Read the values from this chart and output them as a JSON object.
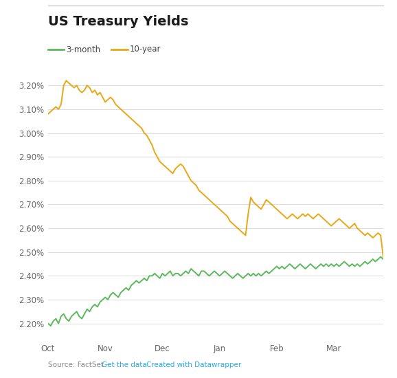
{
  "title": "US Treasury Yields",
  "legend": [
    "3-month",
    "10-year"
  ],
  "line_colors": [
    "#5cb85c",
    "#e6a817"
  ],
  "x_tick_labels": [
    "Oct",
    "Nov",
    "Dec",
    "Jan",
    "Feb",
    "Mar"
  ],
  "y_ticks": [
    2.2,
    2.3,
    2.4,
    2.5,
    2.6,
    2.7,
    2.8,
    2.9,
    3.0,
    3.1,
    3.2
  ],
  "ylim": [
    2.15,
    3.27
  ],
  "source_text": "Source: FactSet · ",
  "link_text1": "Get the data",
  "link_sep": " · ",
  "link_text2": "Created with Datawrapper",
  "background_color": "#ffffff",
  "grid_color": "#dddddd",
  "n_points": 130,
  "three_month": [
    2.2,
    2.19,
    2.21,
    2.22,
    2.2,
    2.23,
    2.24,
    2.22,
    2.21,
    2.23,
    2.24,
    2.25,
    2.23,
    2.22,
    2.24,
    2.26,
    2.25,
    2.27,
    2.28,
    2.27,
    2.29,
    2.3,
    2.31,
    2.3,
    2.32,
    2.33,
    2.32,
    2.31,
    2.33,
    2.34,
    2.35,
    2.34,
    2.36,
    2.37,
    2.38,
    2.37,
    2.38,
    2.39,
    2.38,
    2.4,
    2.4,
    2.41,
    2.4,
    2.39,
    2.41,
    2.4,
    2.41,
    2.42,
    2.4,
    2.41,
    2.41,
    2.4,
    2.41,
    2.42,
    2.41,
    2.43,
    2.42,
    2.41,
    2.4,
    2.42,
    2.42,
    2.41,
    2.4,
    2.41,
    2.42,
    2.41,
    2.4,
    2.41,
    2.42,
    2.41,
    2.4,
    2.39,
    2.4,
    2.41,
    2.4,
    2.39,
    2.4,
    2.41,
    2.4,
    2.41,
    2.4,
    2.41,
    2.4,
    2.41,
    2.42,
    2.41,
    2.42,
    2.43,
    2.44,
    2.43,
    2.44,
    2.43,
    2.44,
    2.45,
    2.44,
    2.43,
    2.44,
    2.45,
    2.44,
    2.43,
    2.44,
    2.45,
    2.44,
    2.43,
    2.44,
    2.45,
    2.44,
    2.45,
    2.44,
    2.45,
    2.44,
    2.45,
    2.44,
    2.45,
    2.46,
    2.45,
    2.44,
    2.45,
    2.44,
    2.45,
    2.44,
    2.45,
    2.46,
    2.45,
    2.46,
    2.47,
    2.46,
    2.47,
    2.48,
    2.47
  ],
  "ten_year": [
    3.08,
    3.09,
    3.1,
    3.11,
    3.1,
    3.12,
    3.2,
    3.22,
    3.21,
    3.2,
    3.19,
    3.2,
    3.18,
    3.17,
    3.18,
    3.2,
    3.19,
    3.17,
    3.18,
    3.16,
    3.17,
    3.15,
    3.13,
    3.14,
    3.15,
    3.14,
    3.12,
    3.11,
    3.1,
    3.09,
    3.08,
    3.07,
    3.06,
    3.05,
    3.04,
    3.03,
    3.02,
    3.0,
    2.99,
    2.97,
    2.95,
    2.92,
    2.9,
    2.88,
    2.87,
    2.86,
    2.85,
    2.84,
    2.83,
    2.85,
    2.86,
    2.87,
    2.86,
    2.84,
    2.82,
    2.8,
    2.79,
    2.78,
    2.76,
    2.75,
    2.74,
    2.73,
    2.72,
    2.71,
    2.7,
    2.69,
    2.68,
    2.67,
    2.66,
    2.65,
    2.63,
    2.62,
    2.61,
    2.6,
    2.59,
    2.58,
    2.57,
    2.66,
    2.73,
    2.71,
    2.7,
    2.69,
    2.68,
    2.7,
    2.72,
    2.71,
    2.7,
    2.69,
    2.68,
    2.67,
    2.66,
    2.65,
    2.64,
    2.65,
    2.66,
    2.65,
    2.64,
    2.65,
    2.66,
    2.65,
    2.66,
    2.65,
    2.64,
    2.65,
    2.66,
    2.65,
    2.64,
    2.63,
    2.62,
    2.61,
    2.62,
    2.63,
    2.64,
    2.63,
    2.62,
    2.61,
    2.6,
    2.61,
    2.62,
    2.6,
    2.59,
    2.58,
    2.57,
    2.58,
    2.57,
    2.56,
    2.57,
    2.58,
    2.57,
    2.48
  ]
}
